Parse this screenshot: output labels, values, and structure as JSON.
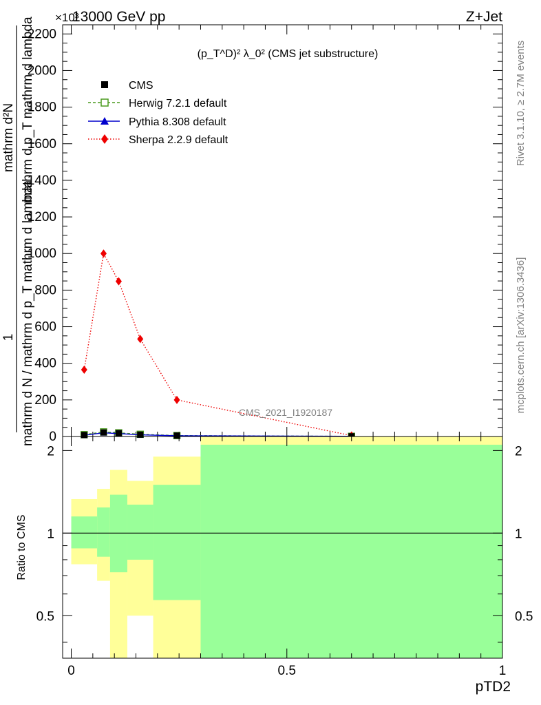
{
  "header": {
    "left": "13000 GeV pp",
    "right": "Z+Jet",
    "multiplier": "×10³"
  },
  "side_text": {
    "rivet": "Rivet 3.1.10, ≥ 2.7M events",
    "mcplots": "mcplots.cern.ch [arXiv:1306.3436]"
  },
  "watermark": "CMS_2021_I1920187",
  "chart_data": [
    {
      "type": "line",
      "title": "(p_T^D)² λ_0² (CMS jet substructure)",
      "title_parts": {
        "base": "(p",
        "sup_d": "D",
        "sub_t": "T",
        "sup2a": "2",
        "mid": " λ_0",
        "sup2b": "2",
        "tail": " (CMS jet substructure)"
      },
      "ylabel": {
        "num_one": "1",
        "num_expr": "mathrm d N / mathrm d p",
        "num_sub": "T",
        "num_tail": " mathrm d lambda",
        "den_expr": "mathrm d²N",
        "den_sub": "",
        "den_tail": ""
      },
      "ylabel_lines": [
        "mathrm d²N",
        "mathrm d p_T mathrm d lambda",
        "1",
        "mathrm d N / mathrm d p_T mathrm d lambda"
      ],
      "xlim": [
        -0.02,
        1.0
      ],
      "ylim": [
        0,
        2250
      ],
      "y_multiplier": 1000,
      "y_ticks": [
        0,
        200,
        400,
        600,
        800,
        1000,
        1200,
        1400,
        1600,
        1800,
        2000,
        2200
      ],
      "y_tick_labels": [
        "0",
        "200",
        "400",
        "600",
        "800",
        "1000",
        "1200",
        "1400",
        "1600",
        "1800",
        "2000",
        "2200"
      ],
      "legend_position": "top-left",
      "series": [
        {
          "name": "CMS",
          "marker": "square",
          "color": "#000000",
          "x": [
            0.03,
            0.075,
            0.11,
            0.16,
            0.245,
            0.65
          ],
          "y": [
            8,
            22,
            18,
            10,
            5,
            1
          ]
        },
        {
          "name": "Herwig 7.2.1 default",
          "marker": "open-square",
          "line": "dashed",
          "color": "#4a9a1e",
          "x": [
            0.03,
            0.075,
            0.11,
            0.16,
            0.245,
            0.65
          ],
          "y": [
            10,
            25,
            20,
            12,
            5,
            1
          ]
        },
        {
          "name": "Pythia 8.308 default",
          "marker": "triangle",
          "line": "solid",
          "color": "#0000cc",
          "x": [
            0.03,
            0.075,
            0.11,
            0.16,
            0.245,
            0.65
          ],
          "y": [
            7,
            20,
            16,
            9,
            4,
            1
          ]
        },
        {
          "name": "Sherpa 2.2.9 default",
          "marker": "diamond",
          "line": "dotted",
          "color": "#ee0000",
          "x": [
            0.03,
            0.075,
            0.11,
            0.16,
            0.245,
            0.65
          ],
          "y": [
            365,
            1000,
            848,
            533,
            200,
            5
          ]
        }
      ]
    },
    {
      "type": "area",
      "ylabel": "Ratio to CMS",
      "xlabel": "pTD2",
      "xlim": [
        -0.02,
        1.0
      ],
      "ylim": [
        0.35,
        2.25
      ],
      "y_tick_labels": [
        "0.5",
        "1",
        "2"
      ],
      "x_tick_labels": [
        "0",
        "0.5",
        "1"
      ],
      "reference_line": 1,
      "band_colors": {
        "stat": "#99ff99",
        "total": "#ffff99"
      },
      "bins": [
        {
          "x0": 0.0,
          "x1": 0.06,
          "green": [
            0.88,
            1.15
          ],
          "yellow": [
            0.77,
            1.33
          ]
        },
        {
          "x0": 0.06,
          "x1": 0.09,
          "green": [
            0.82,
            1.24
          ],
          "yellow": [
            0.67,
            1.45
          ]
        },
        {
          "x0": 0.09,
          "x1": 0.13,
          "green": [
            0.72,
            1.38
          ],
          "yellow": [
            0.35,
            1.7
          ]
        },
        {
          "x0": 0.13,
          "x1": 0.19,
          "green": [
            0.8,
            1.27
          ],
          "yellow": [
            0.5,
            1.55
          ]
        },
        {
          "x0": 0.19,
          "x1": 0.3,
          "green": [
            0.57,
            1.5
          ],
          "yellow": [
            0.35,
            1.9
          ]
        },
        {
          "x0": 0.3,
          "x1": 1.0,
          "green": [
            0.35,
            2.1
          ],
          "yellow": [
            0.35,
            2.35
          ]
        }
      ]
    }
  ]
}
